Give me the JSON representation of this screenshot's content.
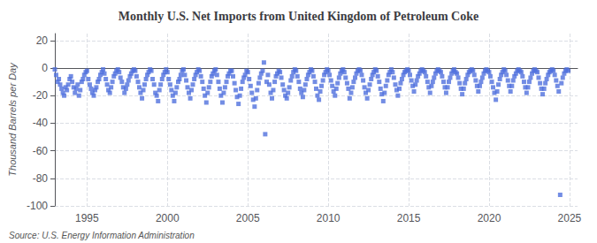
{
  "chart_data": {
    "type": "scatter",
    "title": "Monthly U.S. Net Imports from United Kingdom of Petroleum Coke",
    "ylabel": "Thousand Barrels per Day",
    "annotations": [
      "Source: U.S. Energy Information Administration"
    ],
    "xlim": [
      1993.0,
      2025.5
    ],
    "ylim": [
      -100,
      25
    ],
    "xticks": [
      1995,
      2000,
      2005,
      2010,
      2015,
      2020,
      2025
    ],
    "yticks": [
      -100,
      -80,
      -60,
      -40,
      -20,
      0,
      20
    ],
    "grid": true,
    "marker": "square",
    "x": [
      1993.0,
      1993.08,
      1993.17,
      1993.25,
      1993.33,
      1993.42,
      1993.5,
      1993.58,
      1993.67,
      1993.75,
      1993.83,
      1993.92,
      1994.0,
      1994.08,
      1994.17,
      1994.25,
      1994.33,
      1994.42,
      1994.5,
      1994.58,
      1994.67,
      1994.75,
      1994.83,
      1994.92,
      1995.0,
      1995.08,
      1995.17,
      1995.25,
      1995.33,
      1995.42,
      1995.5,
      1995.58,
      1995.67,
      1995.75,
      1995.83,
      1995.92,
      1996.0,
      1996.08,
      1996.17,
      1996.25,
      1996.33,
      1996.42,
      1996.5,
      1996.58,
      1996.67,
      1996.75,
      1996.83,
      1996.92,
      1997.0,
      1997.08,
      1997.17,
      1997.25,
      1997.33,
      1997.42,
      1997.5,
      1997.58,
      1997.67,
      1997.75,
      1997.83,
      1997.92,
      1998.0,
      1998.08,
      1998.17,
      1998.25,
      1998.33,
      1998.42,
      1998.5,
      1998.58,
      1998.67,
      1998.75,
      1998.83,
      1998.92,
      1999.0,
      1999.08,
      1999.17,
      1999.25,
      1999.33,
      1999.42,
      1999.5,
      1999.58,
      1999.67,
      1999.75,
      1999.83,
      1999.92,
      2000.0,
      2000.08,
      2000.17,
      2000.25,
      2000.33,
      2000.42,
      2000.5,
      2000.58,
      2000.67,
      2000.75,
      2000.83,
      2000.92,
      2001.0,
      2001.08,
      2001.17,
      2001.25,
      2001.33,
      2001.42,
      2001.5,
      2001.58,
      2001.67,
      2001.75,
      2001.83,
      2001.92,
      2002.0,
      2002.08,
      2002.17,
      2002.25,
      2002.33,
      2002.42,
      2002.5,
      2002.58,
      2002.67,
      2002.75,
      2002.83,
      2002.92,
      2003.0,
      2003.08,
      2003.17,
      2003.25,
      2003.33,
      2003.42,
      2003.5,
      2003.58,
      2003.67,
      2003.75,
      2003.83,
      2003.92,
      2004.0,
      2004.08,
      2004.17,
      2004.25,
      2004.33,
      2004.42,
      2004.5,
      2004.58,
      2004.67,
      2004.75,
      2004.83,
      2004.92,
      2005.0,
      2005.08,
      2005.17,
      2005.25,
      2005.33,
      2005.42,
      2005.5,
      2005.58,
      2005.67,
      2005.75,
      2005.83,
      2005.92,
      2006.0,
      2006.08,
      2006.17,
      2006.25,
      2006.33,
      2006.42,
      2006.5,
      2006.58,
      2006.67,
      2006.75,
      2006.83,
      2006.92,
      2007.0,
      2007.08,
      2007.17,
      2007.25,
      2007.33,
      2007.42,
      2007.5,
      2007.58,
      2007.67,
      2007.75,
      2007.83,
      2007.92,
      2008.0,
      2008.08,
      2008.17,
      2008.25,
      2008.33,
      2008.42,
      2008.5,
      2008.58,
      2008.67,
      2008.75,
      2008.83,
      2008.92,
      2009.0,
      2009.08,
      2009.17,
      2009.25,
      2009.33,
      2009.42,
      2009.5,
      2009.58,
      2009.67,
      2009.75,
      2009.83,
      2009.92,
      2010.0,
      2010.08,
      2010.17,
      2010.25,
      2010.33,
      2010.42,
      2010.5,
      2010.58,
      2010.67,
      2010.75,
      2010.83,
      2010.92,
      2011.0,
      2011.08,
      2011.17,
      2011.25,
      2011.33,
      2011.42,
      2011.5,
      2011.58,
      2011.67,
      2011.75,
      2011.83,
      2011.92,
      2012.0,
      2012.08,
      2012.17,
      2012.25,
      2012.33,
      2012.42,
      2012.5,
      2012.58,
      2012.67,
      2012.75,
      2012.83,
      2012.92,
      2013.0,
      2013.08,
      2013.17,
      2013.25,
      2013.33,
      2013.42,
      2013.5,
      2013.58,
      2013.67,
      2013.75,
      2013.83,
      2013.92,
      2014.0,
      2014.08,
      2014.17,
      2014.25,
      2014.33,
      2014.42,
      2014.5,
      2014.58,
      2014.67,
      2014.75,
      2014.83,
      2014.92,
      2015.0,
      2015.08,
      2015.17,
      2015.25,
      2015.33,
      2015.42,
      2015.5,
      2015.58,
      2015.67,
      2015.75,
      2015.83,
      2015.92,
      2016.0,
      2016.08,
      2016.17,
      2016.25,
      2016.33,
      2016.42,
      2016.5,
      2016.58,
      2016.67,
      2016.75,
      2016.83,
      2016.92,
      2017.0,
      2017.08,
      2017.17,
      2017.25,
      2017.33,
      2017.42,
      2017.5,
      2017.58,
      2017.67,
      2017.75,
      2017.83,
      2017.92,
      2018.0,
      2018.08,
      2018.17,
      2018.25,
      2018.33,
      2018.42,
      2018.5,
      2018.58,
      2018.67,
      2018.75,
      2018.83,
      2018.92,
      2019.0,
      2019.08,
      2019.17,
      2019.25,
      2019.33,
      2019.42,
      2019.5,
      2019.58,
      2019.67,
      2019.75,
      2019.83,
      2019.92,
      2020.0,
      2020.08,
      2020.17,
      2020.25,
      2020.33,
      2020.42,
      2020.5,
      2020.58,
      2020.67,
      2020.75,
      2020.83,
      2020.92,
      2021.0,
      2021.08,
      2021.17,
      2021.25,
      2021.33,
      2021.42,
      2021.5,
      2021.58,
      2021.67,
      2021.75,
      2021.83,
      2021.92,
      2022.0,
      2022.08,
      2022.17,
      2022.25,
      2022.33,
      2022.42,
      2022.5,
      2022.58,
      2022.67,
      2022.75,
      2022.83,
      2022.92,
      2023.0,
      2023.08,
      2023.17,
      2023.25,
      2023.33,
      2023.42,
      2023.5,
      2023.58,
      2023.67,
      2023.75,
      2023.83,
      2023.92,
      2024.0,
      2024.08,
      2024.17,
      2024.25,
      2024.33,
      2024.42,
      2024.5,
      2024.58,
      2024.67,
      2024.75,
      2024.83,
      2024.92
    ],
    "values": [
      -1,
      -5,
      -10,
      -8,
      -12,
      -15,
      -18,
      -20,
      -14,
      -16,
      -12,
      -8,
      -6,
      -10,
      -14,
      -18,
      -15,
      -12,
      -20,
      -16,
      -10,
      -8,
      -5,
      -3,
      -2,
      -8,
      -12,
      -15,
      -18,
      -20,
      -16,
      -14,
      -10,
      -8,
      -5,
      -3,
      -1,
      -4,
      -8,
      -12,
      -16,
      -18,
      -14,
      -10,
      -6,
      -4,
      -2,
      -1,
      -3,
      -7,
      -10,
      -14,
      -18,
      -15,
      -12,
      -9,
      -6,
      -4,
      -2,
      -1,
      -2,
      -6,
      -10,
      -14,
      -18,
      -22,
      -16,
      -12,
      -8,
      -5,
      -3,
      -1,
      -2,
      -8,
      -12,
      -18,
      -20,
      -24,
      -16,
      -12,
      -8,
      -5,
      -3,
      -1,
      -3,
      -8,
      -12,
      -16,
      -20,
      -24,
      -18,
      -14,
      -10,
      -8,
      -5,
      -2,
      -1,
      -5,
      -9,
      -14,
      -18,
      -22,
      -16,
      -12,
      -8,
      -5,
      -3,
      -1,
      -2,
      -6,
      -10,
      -15,
      -20,
      -25,
      -18,
      -14,
      -10,
      -6,
      -4,
      -2,
      -1,
      -5,
      -10,
      -15,
      -20,
      -25,
      -18,
      -14,
      -10,
      -6,
      -4,
      -2,
      -2,
      -6,
      -11,
      -16,
      -21,
      -26,
      -20,
      -15,
      -10,
      -7,
      -5,
      -2,
      -3,
      -8,
      -13,
      -18,
      -23,
      -28,
      -22,
      -16,
      -11,
      -7,
      -4,
      -2,
      4,
      -48,
      -10,
      -5,
      -12,
      -18,
      -22,
      -16,
      -10,
      -6,
      -4,
      -2,
      -3,
      -7,
      -12,
      -16,
      -20,
      -22,
      -18,
      -14,
      -9,
      -6,
      -3,
      -1,
      -2,
      -6,
      -10,
      -15,
      -18,
      -21,
      -16,
      -12,
      -8,
      -5,
      -3,
      -1,
      -2,
      -6,
      -10,
      -15,
      -20,
      -23,
      -17,
      -13,
      -9,
      -5,
      -3,
      -1,
      -2,
      -5,
      -9,
      -13,
      -17,
      -20,
      -15,
      -11,
      -7,
      -4,
      -2,
      -1,
      -3,
      -7,
      -11,
      -15,
      -22,
      -18,
      -14,
      -10,
      -7,
      -4,
      -2,
      -1,
      -2,
      -5,
      -9,
      -14,
      -18,
      -22,
      -16,
      -12,
      -8,
      -5,
      -3,
      -1,
      -2,
      -6,
      -10,
      -15,
      -19,
      -24,
      -18,
      -13,
      -9,
      -5,
      -3,
      -1,
      -3,
      -7,
      -12,
      -16,
      -20,
      -15,
      -11,
      -8,
      -5,
      -3,
      -2,
      -1,
      -2,
      -5,
      -9,
      -13,
      -17,
      -12,
      -9,
      -6,
      -4,
      -2,
      -1,
      -2,
      -3,
      -6,
      -10,
      -14,
      -18,
      -13,
      -10,
      -7,
      -4,
      -2,
      -1,
      -2,
      -3,
      -6,
      -10,
      -14,
      -18,
      -14,
      -10,
      -7,
      -4,
      -2,
      -1,
      -3,
      -4,
      -7,
      -11,
      -15,
      -19,
      -15,
      -11,
      -8,
      -5,
      -3,
      -2,
      -1,
      -2,
      -5,
      -9,
      -13,
      -17,
      -13,
      -10,
      -7,
      -4,
      -2,
      -1,
      -2,
      -3,
      -6,
      -10,
      -14,
      -18,
      -23,
      -17,
      -12,
      -8,
      -5,
      -3,
      -1,
      -2,
      -5,
      -9,
      -13,
      -17,
      -13,
      -9,
      -6,
      -4,
      -2,
      -1,
      -2,
      -3,
      -6,
      -10,
      -14,
      -18,
      -14,
      -10,
      -7,
      -4,
      -2,
      -1,
      -2,
      -3,
      -7,
      -11,
      -15,
      -19,
      -15,
      -11,
      -8,
      -5,
      -3,
      -2,
      -1,
      -2,
      -5,
      -9,
      -13,
      -17,
      -92,
      -11,
      -7,
      -4,
      -2,
      -1,
      -2
    ]
  }
}
